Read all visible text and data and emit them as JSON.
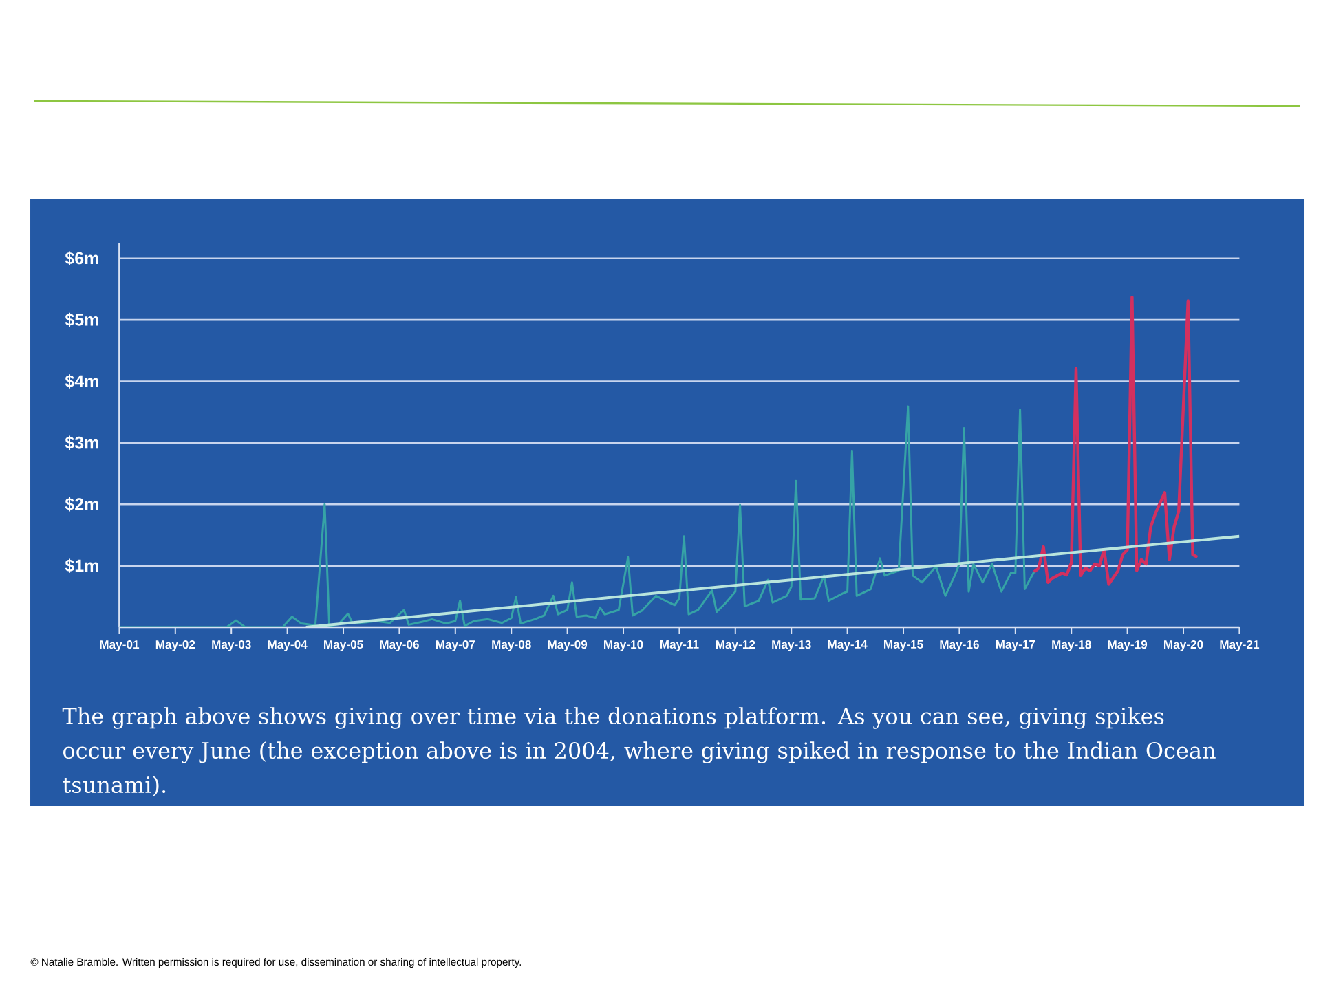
{
  "chart_data": {
    "type": "line",
    "annotations": [
      "The graph above shows giving over time via the donations platform. As you can see, giving spikes occur every June (the exception above is in 2004, where giving spiked in response to the Indian Ocean tsunami).",
      "© Natalie Bramble. Written permission is required for use, dissemination or sharing of intellectual property."
    ],
    "series": [
      {
        "color": "#36a3a6",
        "x": [
          "2001-05",
          "2003-04",
          "2003-06",
          "2003-08",
          "2004-04",
          "2004-06",
          "2004-08",
          "2004-11",
          "2005-01",
          "2005-02",
          "2005-04",
          "2005-06",
          "2005-07",
          "2005-10",
          "2005-12",
          "2006-03",
          "2006-06",
          "2006-07",
          "2006-10",
          "2006-12",
          "2007-03",
          "2007-05",
          "2007-06",
          "2007-07",
          "2007-09",
          "2007-12",
          "2008-03",
          "2008-05",
          "2008-06",
          "2008-07",
          "2008-10",
          "2008-12",
          "2009-02",
          "2009-03",
          "2009-05",
          "2009-06",
          "2009-07",
          "2009-09",
          "2009-11",
          "2009-12",
          "2010-01",
          "2010-04",
          "2010-06",
          "2010-07",
          "2010-09",
          "2010-12",
          "2011-02",
          "2011-04",
          "2011-05",
          "2011-06",
          "2011-07",
          "2011-09",
          "2011-12",
          "2012-01",
          "2012-03",
          "2012-05",
          "2012-06",
          "2012-07",
          "2012-10",
          "2012-12",
          "2013-01",
          "2013-04",
          "2013-05",
          "2013-06",
          "2013-07",
          "2013-10",
          "2013-12",
          "2014-01",
          "2014-04",
          "2014-05",
          "2014-06",
          "2014-07",
          "2014-10",
          "2014-12",
          "2015-01",
          "2015-04",
          "2015-06",
          "2015-07",
          "2015-09",
          "2015-12",
          "2016-02",
          "2016-04",
          "2016-05",
          "2016-06",
          "2016-07",
          "2016-08",
          "2016-10",
          "2016-12",
          "2017-02",
          "2017-04",
          "2017-05",
          "2017-06",
          "2017-07",
          "2017-09"
        ],
        "values": [
          0,
          0,
          0.11,
          0,
          0,
          0.17,
          0.06,
          0.03,
          2.0,
          0.02,
          0.05,
          0.22,
          0.06,
          0.08,
          0.1,
          0.07,
          0.28,
          0.04,
          0.09,
          0.13,
          0.06,
          0.1,
          0.43,
          0.02,
          0.1,
          0.13,
          0.07,
          0.15,
          0.49,
          0.06,
          0.13,
          0.19,
          0.51,
          0.21,
          0.28,
          0.73,
          0.17,
          0.19,
          0.15,
          0.32,
          0.21,
          0.28,
          1.14,
          0.19,
          0.27,
          0.51,
          0.43,
          0.36,
          0.47,
          1.48,
          0.21,
          0.28,
          0.6,
          0.25,
          0.4,
          0.58,
          1.99,
          0.34,
          0.43,
          0.77,
          0.4,
          0.51,
          0.66,
          2.38,
          0.45,
          0.47,
          0.84,
          0.43,
          0.55,
          0.58,
          2.86,
          0.51,
          0.62,
          1.12,
          0.84,
          0.92,
          3.59,
          0.84,
          0.73,
          0.99,
          0.51,
          0.84,
          1.03,
          3.24,
          0.58,
          1.03,
          0.73,
          1.03,
          0.58,
          0.88,
          0.88,
          3.54,
          0.62,
          0.9
        ]
      },
      {
        "color": "#d3305f",
        "x": [
          "2017-09",
          "2017-10",
          "2017-11",
          "2017-12",
          "2018-01",
          "2018-02",
          "2018-03",
          "2018-04",
          "2018-05",
          "2018-06",
          "2018-07",
          "2018-08",
          "2018-09",
          "2018-10",
          "2018-11",
          "2018-12",
          "2019-01",
          "2019-03",
          "2019-04",
          "2019-05",
          "2019-06",
          "2019-07",
          "2019-08",
          "2019-09",
          "2019-10",
          "2019-11",
          "2020-01",
          "2020-02",
          "2020-03",
          "2020-04",
          "2020-06",
          "2020-07",
          "2020-08"
        ],
        "values": [
          0.9,
          0.96,
          1.31,
          0.73,
          0.8,
          0.84,
          0.88,
          0.85,
          1.05,
          4.21,
          0.84,
          0.96,
          0.92,
          1.03,
          1.0,
          1.26,
          0.7,
          0.92,
          1.18,
          1.26,
          5.37,
          0.92,
          1.1,
          1.03,
          1.63,
          1.85,
          2.19,
          1.1,
          1.63,
          1.89,
          5.31,
          1.18,
          1.14
        ]
      },
      {
        "type": "line",
        "color": "#b9e5dd",
        "x": [
          "2004-09",
          "2021-05"
        ],
        "values": [
          0,
          1.48
        ]
      }
    ],
    "xlim": [
      "2001-05",
      "2021-05"
    ],
    "xticks": [
      {
        "value": "2001-05",
        "label": "May-01"
      },
      {
        "value": "2002-05",
        "label": "May-02"
      },
      {
        "value": "2003-05",
        "label": "May-03"
      },
      {
        "value": "2004-05",
        "label": "May-04"
      },
      {
        "value": "2005-05",
        "label": "May-05"
      },
      {
        "value": "2006-05",
        "label": "May-06"
      },
      {
        "value": "2007-05",
        "label": "May-07"
      },
      {
        "value": "2008-05",
        "label": "May-08"
      },
      {
        "value": "2009-05",
        "label": "May-09"
      },
      {
        "value": "2010-05",
        "label": "May-10"
      },
      {
        "value": "2011-05",
        "label": "May-11"
      },
      {
        "value": "2012-05",
        "label": "May-12"
      },
      {
        "value": "2013-05",
        "label": "May-13"
      },
      {
        "value": "2014-05",
        "label": "May-14"
      },
      {
        "value": "2015-05",
        "label": "May-15"
      },
      {
        "value": "2016-05",
        "label": "May-16"
      },
      {
        "value": "2017-05",
        "label": "May-17"
      },
      {
        "value": "2018-05",
        "label": "May-18"
      },
      {
        "value": "2019-05",
        "label": "May-19"
      },
      {
        "value": "2020-05",
        "label": "May-20"
      },
      {
        "value": "2021-05",
        "label": "May-21"
      }
    ],
    "ylim": [
      0,
      6.25
    ],
    "yticks": [
      {
        "value": 1,
        "label": "$1m"
      },
      {
        "value": 2,
        "label": "$2m"
      },
      {
        "value": 3,
        "label": "$3m"
      },
      {
        "value": 4,
        "label": "$4m"
      },
      {
        "value": 5,
        "label": "$5m"
      },
      {
        "value": 6,
        "label": "$6m"
      }
    ],
    "grid": "y"
  }
}
